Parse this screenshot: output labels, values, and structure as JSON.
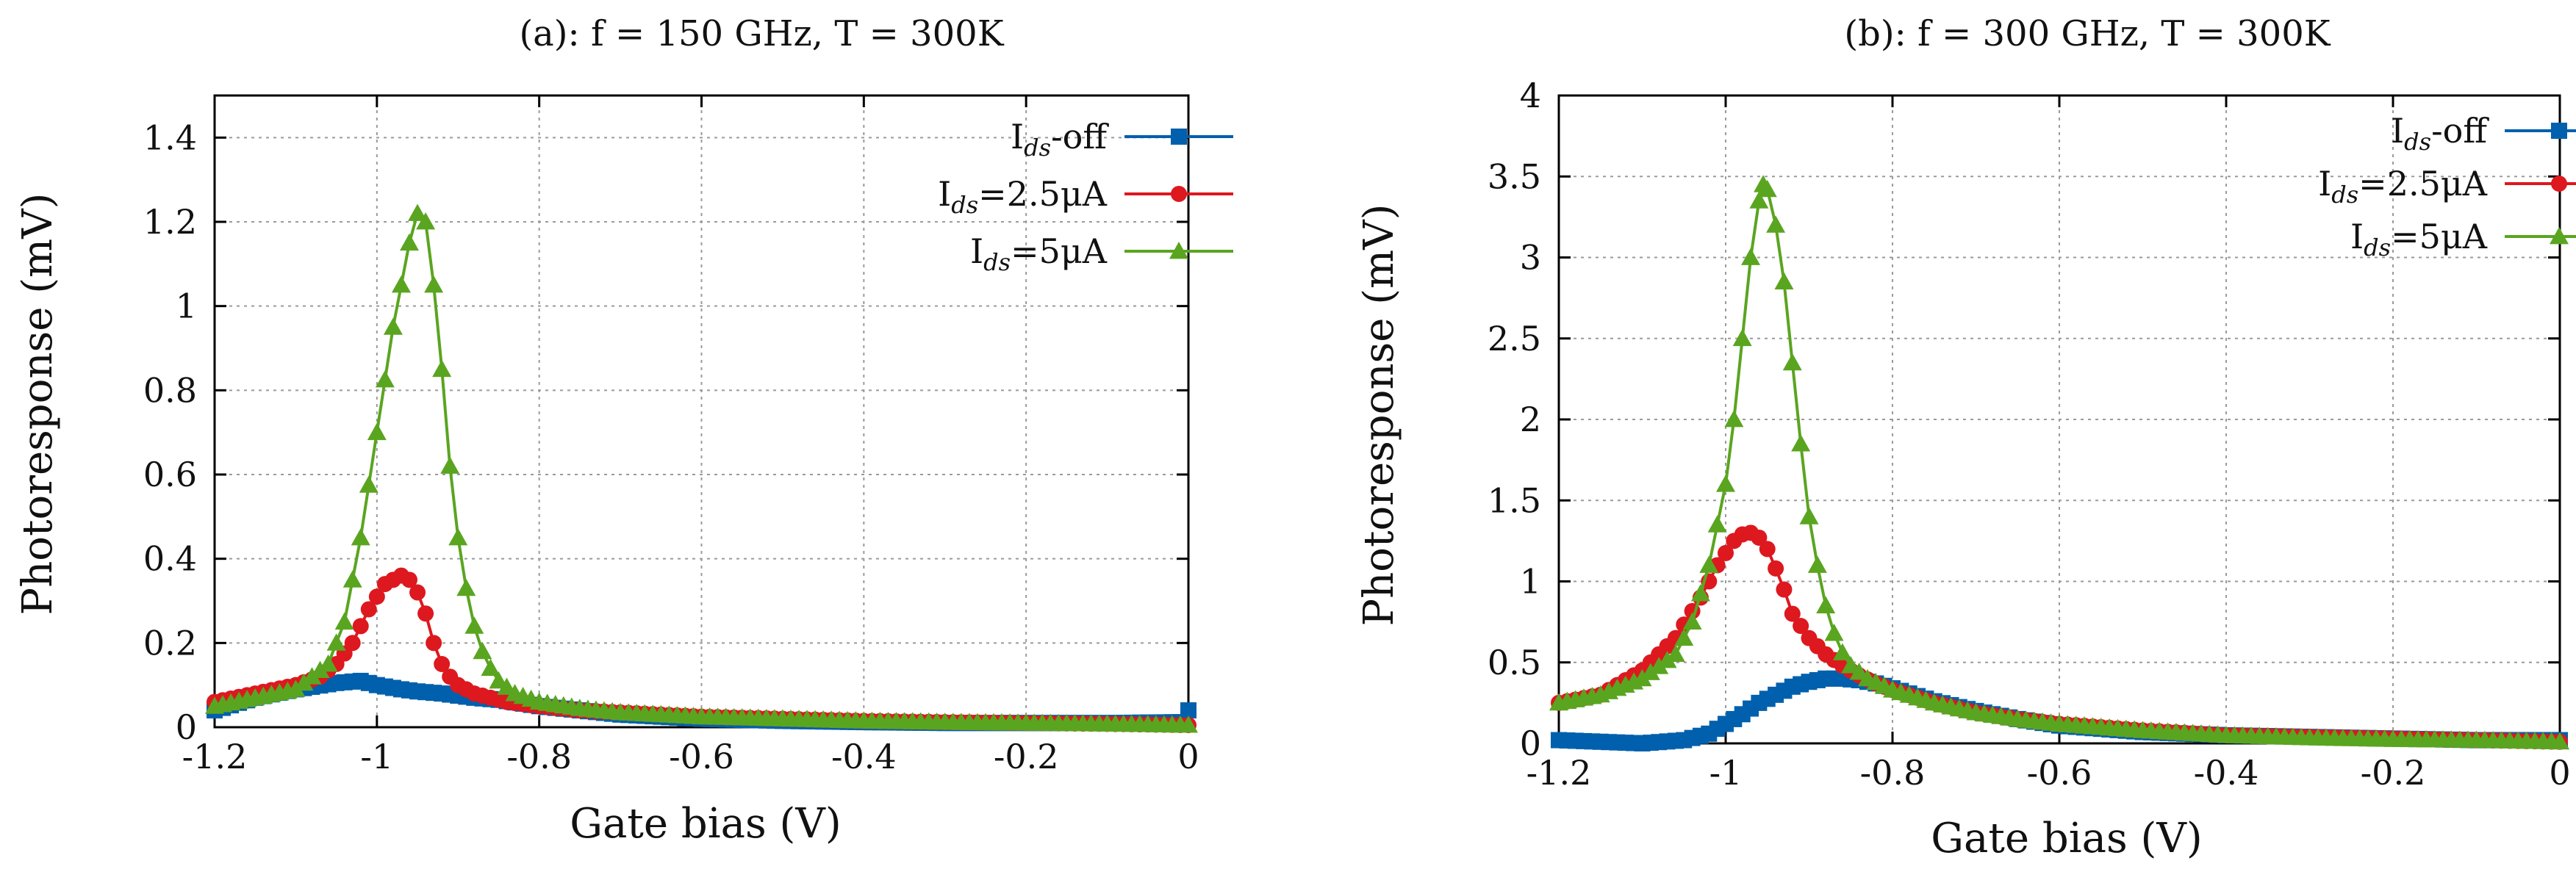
{
  "series_styles": [
    {
      "name": "I_ds-off",
      "color": "#0060ad",
      "marker": "square"
    },
    {
      "name": "I_ds=2.5μA",
      "color": "#dd181f",
      "marker": "circle"
    },
    {
      "name": "I_ds=5μA",
      "color": "#5aa520",
      "marker": "triangle"
    }
  ],
  "chart_data": [
    {
      "type": "line",
      "title": "(a): f = 150 GHz, T = 300K",
      "xlabel": "Gate bias (V)",
      "ylabel": "Photoresponse (mV)",
      "xlim": [
        -1.2,
        0
      ],
      "ylim": [
        0,
        1.5
      ],
      "xticks": [
        -1.2,
        -1,
        -0.8,
        -0.6,
        -0.4,
        -0.2,
        0
      ],
      "xtick_labels": [
        "-1.2",
        "-1",
        "-0.8",
        "-0.6",
        "-0.4",
        "-0.2",
        "0"
      ],
      "yticks": [
        0,
        0.2,
        0.4,
        0.6,
        0.8,
        1,
        1.2,
        1.4
      ],
      "ytick_labels": [
        "0",
        "0.2",
        "0.4",
        "0.6",
        "0.8",
        "1",
        "1.2",
        "1.4"
      ],
      "grid": true,
      "legend_position": "top-right",
      "legend": [
        {
          "prefix": "I",
          "sub": "ds",
          "suffix": "-off"
        },
        {
          "prefix": "I",
          "sub": "ds",
          "suffix": "=2.5μA"
        },
        {
          "prefix": "I",
          "sub": "ds",
          "suffix": "=5μA"
        }
      ],
      "series": [
        {
          "name": "I_ds-off",
          "x": [
            -1.2,
            -1.15,
            -1.1,
            -1.05,
            -1.02,
            -1.0,
            -0.97,
            -0.95,
            -0.92,
            -0.9,
            -0.88,
            -0.85,
            -0.8,
            -0.75,
            -0.7,
            -0.6,
            -0.5,
            -0.4,
            -0.3,
            -0.2,
            -0.1,
            -0.01,
            0.0
          ],
          "y": [
            0.04,
            0.07,
            0.09,
            0.105,
            0.11,
            0.1,
            0.09,
            0.085,
            0.08,
            0.075,
            0.07,
            0.065,
            0.05,
            0.04,
            0.03,
            0.02,
            0.015,
            0.012,
            0.01,
            0.01,
            0.01,
            0.012,
            0.04
          ]
        },
        {
          "name": "I_ds=2.5μA",
          "x": [
            -1.2,
            -1.15,
            -1.1,
            -1.07,
            -1.05,
            -1.03,
            -1.01,
            -0.99,
            -0.97,
            -0.96,
            -0.95,
            -0.94,
            -0.93,
            -0.92,
            -0.91,
            -0.9,
            -0.88,
            -0.86,
            -0.84,
            -0.82,
            -0.8,
            -0.75,
            -0.7,
            -0.6,
            -0.5,
            -0.4,
            -0.3,
            -0.2,
            -0.1,
            0.0
          ],
          "y": [
            0.06,
            0.08,
            0.1,
            0.12,
            0.15,
            0.2,
            0.28,
            0.34,
            0.36,
            0.35,
            0.32,
            0.27,
            0.2,
            0.15,
            0.12,
            0.1,
            0.08,
            0.07,
            0.06,
            0.055,
            0.05,
            0.04,
            0.035,
            0.025,
            0.02,
            0.015,
            0.012,
            0.01,
            0.008,
            0.005
          ]
        },
        {
          "name": "I_ds=5μA",
          "x": [
            -1.2,
            -1.15,
            -1.1,
            -1.08,
            -1.06,
            -1.04,
            -1.02,
            -1.0,
            -0.98,
            -0.96,
            -0.95,
            -0.94,
            -0.93,
            -0.92,
            -0.91,
            -0.9,
            -0.89,
            -0.88,
            -0.87,
            -0.86,
            -0.85,
            -0.83,
            -0.8,
            -0.75,
            -0.7,
            -0.6,
            -0.5,
            -0.4,
            -0.3,
            -0.2,
            -0.1,
            0.0
          ],
          "y": [
            0.05,
            0.07,
            0.09,
            0.12,
            0.15,
            0.25,
            0.45,
            0.7,
            0.95,
            1.15,
            1.22,
            1.2,
            1.05,
            0.85,
            0.62,
            0.45,
            0.33,
            0.24,
            0.18,
            0.14,
            0.11,
            0.08,
            0.06,
            0.045,
            0.035,
            0.025,
            0.02,
            0.015,
            0.012,
            0.01,
            0.008,
            0.005
          ]
        }
      ]
    },
    {
      "type": "line",
      "title": "(b): f = 300 GHz, T = 300K",
      "xlabel": "Gate bias (V)",
      "ylabel": "Photoresponse (mV)",
      "xlim": [
        -1.2,
        0
      ],
      "ylim": [
        0,
        4
      ],
      "xticks": [
        -1.2,
        -1,
        -0.8,
        -0.6,
        -0.4,
        -0.2,
        0
      ],
      "xtick_labels": [
        "-1.2",
        "-1",
        "-0.8",
        "-0.6",
        "-0.4",
        "-0.2",
        "0"
      ],
      "yticks": [
        0,
        0.5,
        1,
        1.5,
        2,
        2.5,
        3,
        3.5,
        4
      ],
      "ytick_labels": [
        "0",
        "0.5",
        "1",
        "1.5",
        "2",
        "2.5",
        "3",
        "3.5",
        "4"
      ],
      "grid": true,
      "legend_position": "top-right",
      "legend": [
        {
          "prefix": "I",
          "sub": "ds",
          "suffix": "-off"
        },
        {
          "prefix": "I",
          "sub": "ds",
          "suffix": "=2.5μA"
        },
        {
          "prefix": "I",
          "sub": "ds",
          "suffix": "=5μA"
        }
      ],
      "series": [
        {
          "name": "I_ds-off",
          "x": [
            -1.2,
            -1.15,
            -1.1,
            -1.05,
            -1.02,
            -1.0,
            -0.98,
            -0.96,
            -0.94,
            -0.92,
            -0.9,
            -0.88,
            -0.86,
            -0.84,
            -0.82,
            -0.8,
            -0.75,
            -0.7,
            -0.65,
            -0.6,
            -0.5,
            -0.4,
            -0.3,
            -0.2,
            -0.1,
            0.0
          ],
          "y": [
            0.02,
            0.01,
            0.0,
            0.02,
            0.06,
            0.12,
            0.18,
            0.25,
            0.3,
            0.35,
            0.38,
            0.4,
            0.4,
            0.39,
            0.37,
            0.34,
            0.26,
            0.2,
            0.15,
            0.11,
            0.07,
            0.05,
            0.04,
            0.03,
            0.02,
            0.02
          ]
        },
        {
          "name": "I_ds=2.5μA",
          "x": [
            -1.2,
            -1.15,
            -1.1,
            -1.06,
            -1.03,
            -1.01,
            -0.99,
            -0.98,
            -0.97,
            -0.96,
            -0.95,
            -0.94,
            -0.93,
            -0.92,
            -0.9,
            -0.88,
            -0.86,
            -0.84,
            -0.82,
            -0.8,
            -0.75,
            -0.7,
            -0.65,
            -0.6,
            -0.5,
            -0.4,
            -0.3,
            -0.2,
            -0.1,
            0.0
          ],
          "y": [
            0.25,
            0.3,
            0.45,
            0.65,
            0.9,
            1.1,
            1.25,
            1.29,
            1.3,
            1.27,
            1.2,
            1.08,
            0.95,
            0.8,
            0.65,
            0.55,
            0.48,
            0.42,
            0.37,
            0.33,
            0.25,
            0.19,
            0.15,
            0.12,
            0.08,
            0.05,
            0.04,
            0.03,
            0.02,
            0.01
          ]
        },
        {
          "name": "I_ds=5μA",
          "x": [
            -1.2,
            -1.15,
            -1.1,
            -1.06,
            -1.04,
            -1.02,
            -1.0,
            -0.99,
            -0.98,
            -0.97,
            -0.96,
            -0.955,
            -0.95,
            -0.94,
            -0.93,
            -0.92,
            -0.91,
            -0.9,
            -0.89,
            -0.88,
            -0.87,
            -0.86,
            -0.85,
            -0.83,
            -0.8,
            -0.75,
            -0.7,
            -0.65,
            -0.6,
            -0.5,
            -0.4,
            -0.3,
            -0.2,
            -0.1,
            0.0
          ],
          "y": [
            0.25,
            0.3,
            0.4,
            0.55,
            0.75,
            1.1,
            1.6,
            2.0,
            2.5,
            3.0,
            3.35,
            3.45,
            3.42,
            3.2,
            2.85,
            2.35,
            1.85,
            1.4,
            1.1,
            0.85,
            0.68,
            0.56,
            0.48,
            0.4,
            0.33,
            0.25,
            0.19,
            0.15,
            0.12,
            0.08,
            0.05,
            0.035,
            0.025,
            0.02,
            0.01
          ]
        }
      ]
    }
  ]
}
